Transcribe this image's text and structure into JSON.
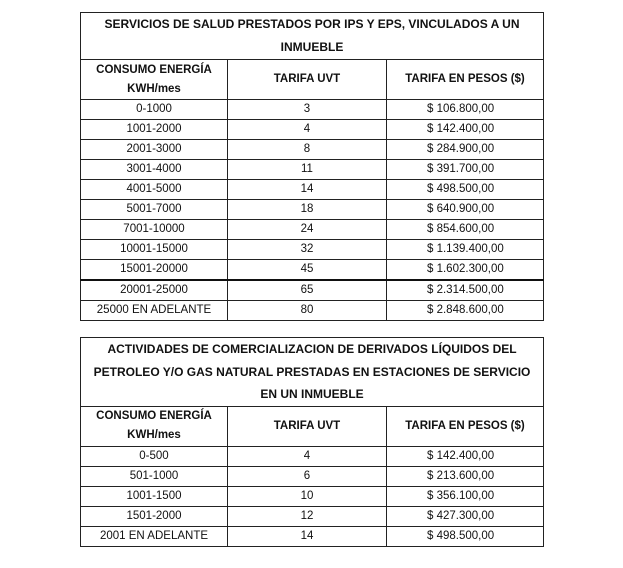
{
  "table1": {
    "title": "SERVICIOS DE SALUD PRESTADOS POR IPS Y EPS, VINCULADOS A UN INMUEBLE",
    "headers": [
      "CONSUMO ENERGÍA KWH/mes",
      "TARIFA UVT",
      "TARIFA EN PESOS ($)"
    ],
    "rows": [
      [
        "0-1000",
        "3",
        "$ 106.800,00"
      ],
      [
        "1001-2000",
        "4",
        "$ 142.400,00"
      ],
      [
        "2001-3000",
        "8",
        "$ 284.900,00"
      ],
      [
        "3001-4000",
        "11",
        "$ 391.700,00"
      ],
      [
        "4001-5000",
        "14",
        "$ 498.500,00"
      ],
      [
        "5001-7000",
        "18",
        "$ 640.900,00"
      ],
      [
        "7001-10000",
        "24",
        "$ 854.600,00"
      ],
      [
        "10001-15000",
        "32",
        "$ 1.139.400,00"
      ],
      [
        "15001-20000",
        "45",
        "$ 1.602.300,00"
      ],
      [
        "20001-25000",
        "65",
        "$ 2.314.500,00"
      ],
      [
        "25000 EN ADELANTE",
        "80",
        "$ 2.848.600,00"
      ]
    ]
  },
  "table2": {
    "title": "ACTIVIDADES DE COMERCIALIZACION DE DERIVADOS LÍQUIDOS DEL PETROLEO Y/O GAS NATURAL PRESTADAS EN ESTACIONES DE SERVICIO EN UN INMUEBLE",
    "headers": [
      "CONSUMO ENERGÍA KWH/mes",
      "TARIFA UVT",
      "TARIFA EN PESOS ($)"
    ],
    "rows": [
      [
        "0-500",
        "4",
        "$ 142.400,00"
      ],
      [
        "501-1000",
        "6",
        "$ 213.600,00"
      ],
      [
        "1001-1500",
        "10",
        "$ 356.100,00"
      ],
      [
        "1501-2000",
        "12",
        "$ 427.300,00"
      ],
      [
        "2001 EN ADELANTE",
        "14",
        "$ 498.500,00"
      ]
    ]
  }
}
